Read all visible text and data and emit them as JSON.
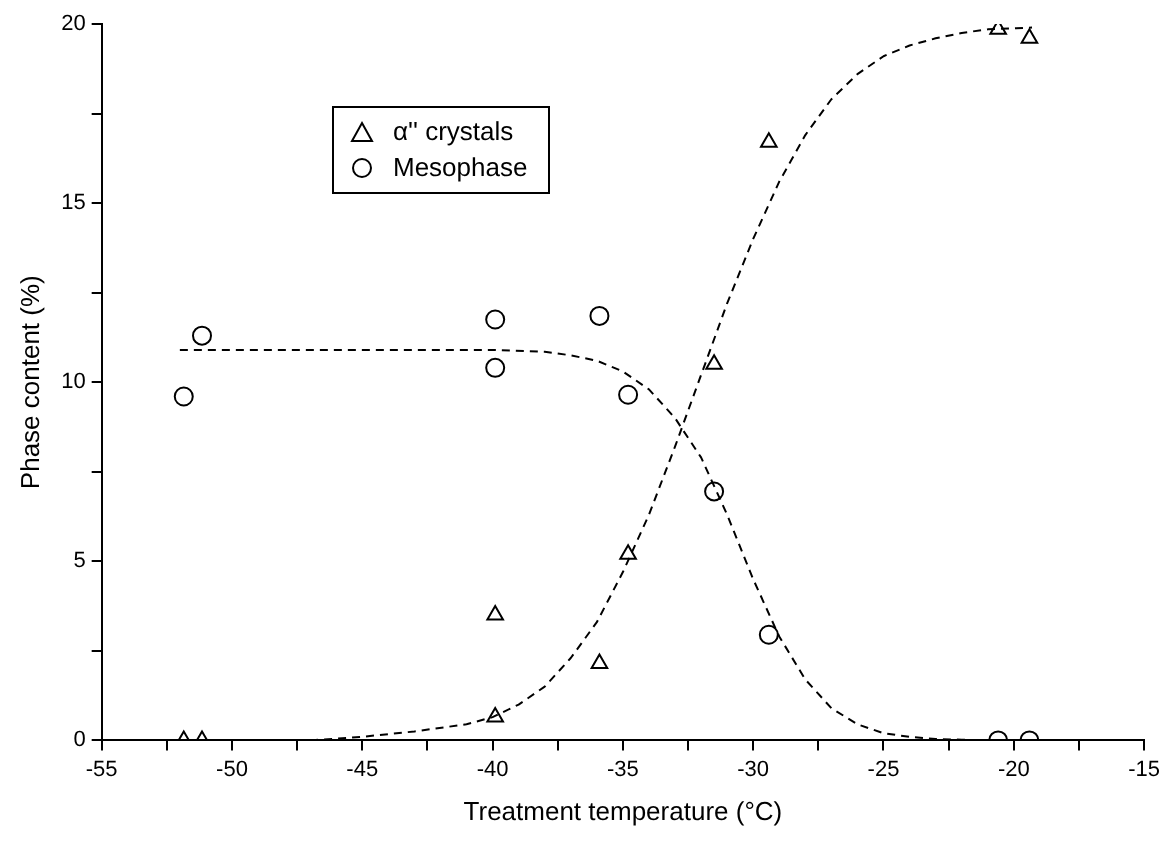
{
  "chart_data": {
    "type": "scatter",
    "xlabel": "Treatment temperature (°C)",
    "ylabel": "Phase content (%)",
    "xlim": [
      -55,
      -15
    ],
    "ylim": [
      0,
      20
    ],
    "xticks": [
      -55,
      {
        "value": -52.5,
        "label": null
      },
      -50,
      {
        "value": -47.5,
        "label": null
      },
      -45,
      {
        "value": -42.5,
        "label": null
      },
      -40,
      {
        "value": -37.5,
        "label": null
      },
      -35,
      {
        "value": -32.5,
        "label": null
      },
      -30,
      {
        "value": -27.5,
        "label": null
      },
      -25,
      {
        "value": -22.5,
        "label": null
      },
      -20,
      {
        "value": -17.5,
        "label": null
      },
      -15
    ],
    "yticks": [
      0,
      {
        "value": 2.5,
        "label": null
      },
      5,
      {
        "value": 7.5,
        "label": null
      },
      10,
      {
        "value": 12.5,
        "label": null
      },
      15,
      {
        "value": 17.5,
        "label": null
      },
      20
    ],
    "grid": false,
    "legend": "top left",
    "series": [
      {
        "name": "α'' crystals",
        "marker": "triangle",
        "color": "#000000",
        "x": [
          -51.85,
          -51.15,
          -39.9,
          -39.9,
          -35.9,
          -34.8,
          -31.5,
          -29.4,
          -20.6,
          -19.4
        ],
        "values": [
          0,
          0,
          3.5,
          0.65,
          2.15,
          5.2,
          10.5,
          16.7,
          19.85,
          19.6
        ]
      },
      {
        "name": "Mesophase",
        "marker": "circle",
        "color": "#000000",
        "x": [
          -51.85,
          -51.15,
          -39.9,
          -39.9,
          -35.9,
          -34.8,
          -31.5,
          -29.4,
          -20.6,
          -19.4
        ],
        "values": [
          9.6,
          11.3,
          11.75,
          10.4,
          11.85,
          9.65,
          6.95,
          2.95,
          0,
          0
        ]
      },
      {
        "type": "line",
        "line_style": "dashed",
        "color": "#000000",
        "x": [
          -47,
          -45,
          -43,
          -41,
          -40,
          -39,
          -38,
          -37,
          -36,
          -35,
          -34,
          -33,
          -32,
          -31,
          -30,
          -29,
          -28,
          -27,
          -26,
          -25,
          -24,
          -23,
          -22,
          -21,
          -19.3
        ],
        "values": [
          0,
          0.1,
          0.25,
          0.45,
          0.65,
          1.0,
          1.5,
          2.3,
          3.3,
          4.7,
          6.3,
          8.2,
          10.2,
          12.2,
          14.0,
          15.6,
          16.9,
          17.9,
          18.6,
          19.1,
          19.4,
          19.6,
          19.75,
          19.85,
          19.9
        ]
      },
      {
        "type": "line",
        "line_style": "dashed",
        "color": "#000000",
        "x": [
          -52,
          -45,
          -40,
          -38,
          -37,
          -36,
          -35,
          -34,
          -33,
          -32,
          -31,
          -30,
          -29,
          -28,
          -27,
          -26,
          -25,
          -24,
          -23,
          -22,
          -21
        ],
        "values": [
          10.9,
          10.9,
          10.9,
          10.85,
          10.75,
          10.6,
          10.3,
          9.8,
          9.0,
          7.9,
          6.3,
          4.5,
          2.9,
          1.7,
          0.9,
          0.45,
          0.2,
          0.1,
          0.04,
          0.02,
          0
        ]
      }
    ]
  }
}
